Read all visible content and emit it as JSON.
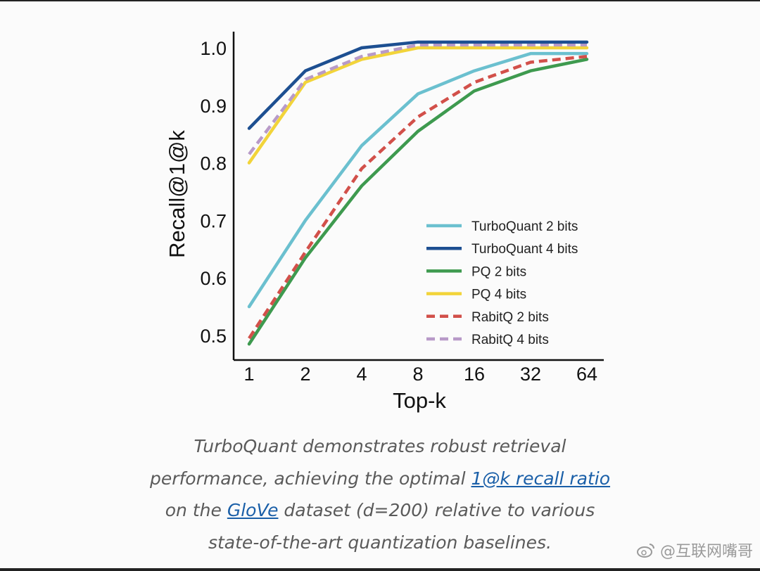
{
  "chart_data": {
    "type": "line",
    "xlabel": "Top-k",
    "ylabel": "Recall@1@k",
    "categories": [
      "1",
      "2",
      "4",
      "8",
      "16",
      "32",
      "64"
    ],
    "ylim": [
      0.48,
      1.03
    ],
    "yticks": [
      "0.5",
      "0.6",
      "0.7",
      "0.8",
      "0.9",
      "1.0"
    ],
    "ytick_values": [
      0.5,
      0.6,
      0.7,
      0.8,
      0.9,
      1.0
    ],
    "legend_position": "lower-right",
    "series": [
      {
        "name": "TurboQuant 2 bits",
        "color": "#6bc0cf",
        "dash": false,
        "values": [
          0.55,
          0.7,
          0.83,
          0.92,
          0.96,
          0.99,
          0.99
        ]
      },
      {
        "name": "TurboQuant 4 bits",
        "color": "#1d4f91",
        "dash": false,
        "values": [
          0.86,
          0.96,
          1.0,
          1.01,
          1.01,
          1.01,
          1.01
        ]
      },
      {
        "name": "PQ 2 bits",
        "color": "#3e9a4f",
        "dash": false,
        "values": [
          0.485,
          0.635,
          0.76,
          0.855,
          0.925,
          0.96,
          0.98
        ]
      },
      {
        "name": "PQ 4 bits",
        "color": "#f2d43a",
        "dash": false,
        "values": [
          0.8,
          0.94,
          0.98,
          1.0,
          1.0,
          1.0,
          1.0
        ]
      },
      {
        "name": "RabitQ 2 bits",
        "color": "#d2504a",
        "dash": true,
        "values": [
          0.495,
          0.645,
          0.79,
          0.88,
          0.94,
          0.975,
          0.985
        ]
      },
      {
        "name": "RabitQ 4 bits",
        "color": "#b89ac8",
        "dash": true,
        "values": [
          0.815,
          0.945,
          0.985,
          1.005,
          1.005,
          1.005,
          1.005
        ]
      }
    ]
  },
  "caption": {
    "line1": "TurboQuant demonstrates robust retrieval",
    "line2_pre": "performance, achieving the optimal ",
    "link1": "1@k recall ratio",
    "line3_pre": "on the ",
    "link2": "GloVe",
    "line3_post": " dataset (d=200) relative to various",
    "line4": "state-of-the-art quantization baselines."
  },
  "watermark": "@互联网嘴哥"
}
